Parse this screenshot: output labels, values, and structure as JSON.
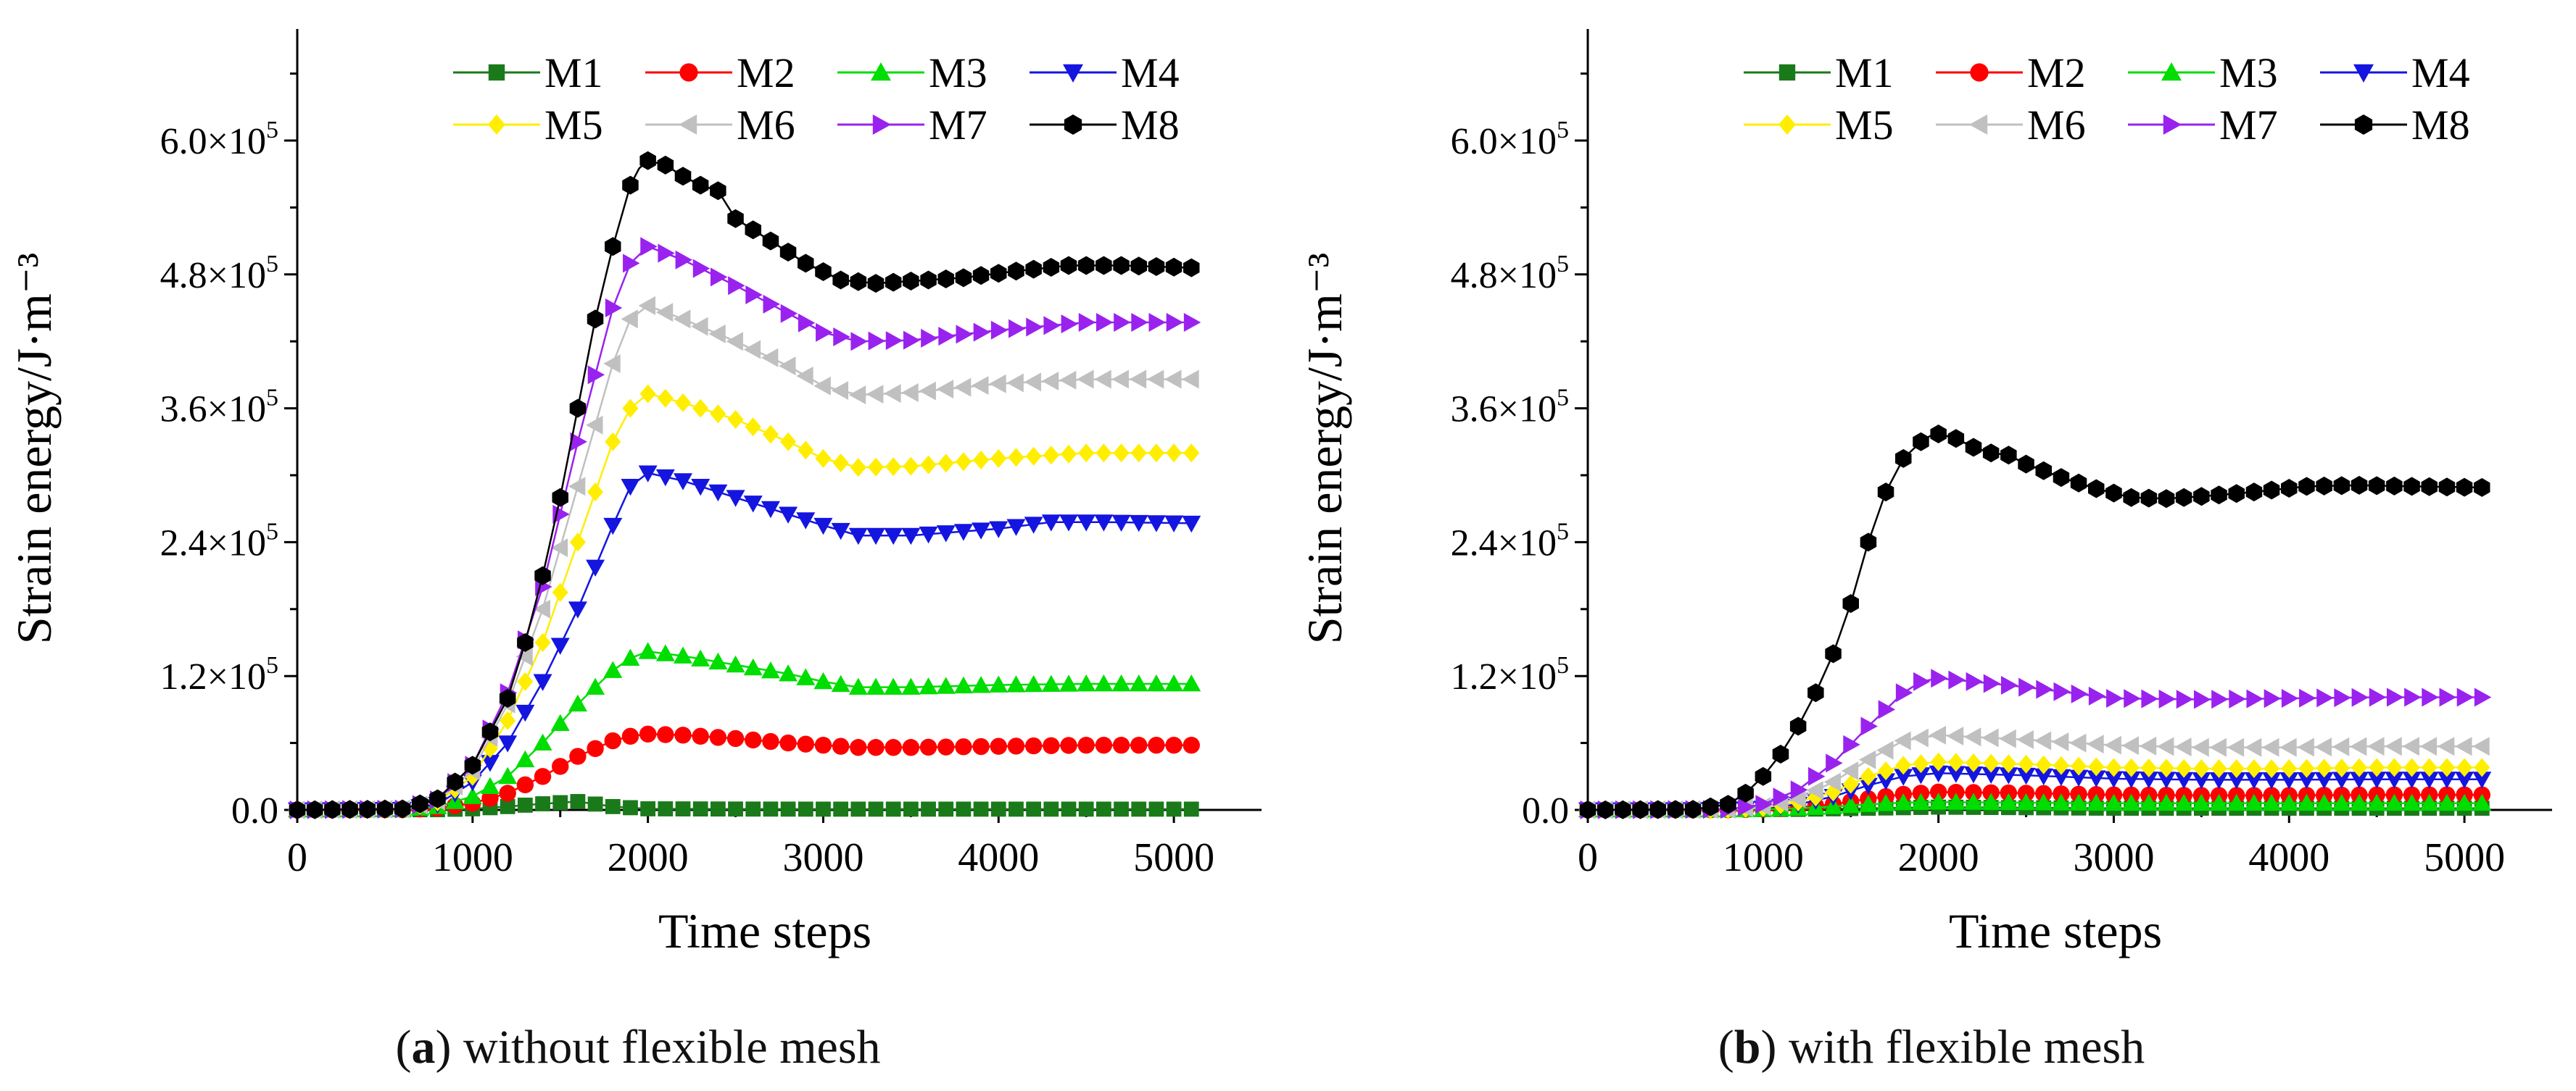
{
  "panels": [
    {
      "caption_letter": "a",
      "caption_paren_open": "(",
      "caption_paren_close": ")",
      "caption_text": " without flexible mesh"
    },
    {
      "caption_letter": "b",
      "caption_paren_open": "(",
      "caption_paren_close": ")",
      "caption_text": " with flexible mesh"
    }
  ],
  "chart_data": [
    {
      "type": "line",
      "title": "",
      "xlabel": "Time steps",
      "ylabel": "Strain energy/J·m⁻³",
      "xlim": [
        0,
        5500
      ],
      "ylim": [
        0,
        700000
      ],
      "x_ticks": [
        0,
        1000,
        2000,
        3000,
        4000,
        5000
      ],
      "x_tick_labels": [
        "0",
        "1000",
        "2000",
        "3000",
        "4000",
        "5000"
      ],
      "y_ticks": [
        0,
        120000,
        240000,
        360000,
        480000,
        600000
      ],
      "y_tick_labels": [
        {
          "mant": "0.0",
          "exp": ""
        },
        {
          "mant": "1.2×10",
          "exp": "5"
        },
        {
          "mant": "2.4×10",
          "exp": "5"
        },
        {
          "mant": "3.6×10",
          "exp": "5"
        },
        {
          "mant": "4.8×10",
          "exp": "5"
        },
        {
          "mant": "6.0×10",
          "exp": "5"
        }
      ],
      "grid": false,
      "legend_position": "top-center",
      "series": [
        {
          "name": "M1",
          "color": "#1a7a1a",
          "marker": "square",
          "x": [
            0,
            800,
            1000,
            1200,
            1400,
            1600,
            1800,
            2000,
            2500,
            3000,
            4000,
            5100
          ],
          "y": [
            0,
            200,
            1000,
            3000,
            5500,
            7500,
            3000,
            1000,
            800,
            700,
            700,
            700
          ]
        },
        {
          "name": "M2",
          "color": "#ff0000",
          "marker": "circle",
          "x": [
            0,
            600,
            800,
            1000,
            1200,
            1400,
            1600,
            1800,
            1900,
            2000,
            2200,
            2500,
            2800,
            3000,
            3200,
            3500,
            4000,
            4500,
            5100
          ],
          "y": [
            0,
            200,
            1500,
            6000,
            15000,
            30000,
            48000,
            62000,
            66000,
            68000,
            67000,
            64000,
            60000,
            58000,
            56000,
            56000,
            57000,
            58000,
            58000
          ]
        },
        {
          "name": "M3",
          "color": "#00dd00",
          "marker": "triangle-up",
          "x": [
            0,
            600,
            800,
            1000,
            1200,
            1400,
            1600,
            1800,
            1900,
            2000,
            2200,
            2500,
            2800,
            3000,
            3200,
            3500,
            4000,
            4500,
            5100
          ],
          "y": [
            0,
            300,
            3000,
            12000,
            30000,
            60000,
            95000,
            125000,
            136000,
            142000,
            138000,
            130000,
            122000,
            115000,
            110000,
            110000,
            112000,
            113000,
            113000
          ]
        },
        {
          "name": "M4",
          "color": "#1515e0",
          "marker": "triangle-down",
          "x": [
            0,
            600,
            800,
            1000,
            1200,
            1400,
            1600,
            1800,
            1900,
            2000,
            2200,
            2500,
            2800,
            3000,
            3200,
            3500,
            4000,
            4300,
            4600,
            5100
          ],
          "y": [
            0,
            500,
            5000,
            25000,
            60000,
            115000,
            180000,
            255000,
            290000,
            302000,
            295000,
            280000,
            265000,
            255000,
            246000,
            246000,
            252000,
            258000,
            258000,
            257000
          ]
        },
        {
          "name": "M5",
          "color": "#ffee00",
          "marker": "diamond",
          "x": [
            0,
            600,
            800,
            1000,
            1200,
            1400,
            1600,
            1800,
            1900,
            2000,
            2200,
            2500,
            2800,
            3000,
            3200,
            3500,
            4000,
            4500,
            5100
          ],
          "y": [
            0,
            600,
            7000,
            30000,
            80000,
            150000,
            240000,
            330000,
            360000,
            373000,
            365000,
            350000,
            330000,
            315000,
            307000,
            308000,
            315000,
            320000,
            320000
          ]
        },
        {
          "name": "M6",
          "color": "#c0c0c0",
          "marker": "triangle-left",
          "x": [
            0,
            600,
            800,
            1000,
            1200,
            1400,
            1600,
            1800,
            1900,
            2000,
            2200,
            2500,
            2800,
            3000,
            3200,
            3500,
            4000,
            4500,
            5100
          ],
          "y": [
            0,
            700,
            8000,
            35000,
            95000,
            180000,
            290000,
            400000,
            440000,
            452000,
            440000,
            420000,
            398000,
            380000,
            372000,
            374000,
            382000,
            386000,
            386000
          ]
        },
        {
          "name": "M7",
          "color": "#9a22ee",
          "marker": "triangle-right",
          "x": [
            0,
            600,
            800,
            1000,
            1200,
            1400,
            1600,
            1800,
            1900,
            2000,
            2200,
            2500,
            2800,
            3000,
            3200,
            3500,
            4000,
            4500,
            5100
          ],
          "y": [
            0,
            800,
            9000,
            40000,
            105000,
            200000,
            330000,
            450000,
            490000,
            505000,
            493000,
            470000,
            445000,
            428000,
            420000,
            421000,
            430000,
            437000,
            437000
          ]
        },
        {
          "name": "M8",
          "color": "#000000",
          "marker": "hexagon",
          "x": [
            0,
            600,
            800,
            1000,
            1200,
            1300,
            1400,
            1500,
            1600,
            1700,
            1800,
            1900,
            1950,
            2000,
            2100,
            2200,
            2300,
            2400,
            2500,
            2700,
            2900,
            3100,
            3300,
            3500,
            3800,
            4100,
            4400,
            4700,
            5100
          ],
          "y": [
            0,
            900,
            10000,
            40000,
            100000,
            150000,
            210000,
            280000,
            360000,
            440000,
            505000,
            560000,
            575000,
            582000,
            578000,
            568000,
            560000,
            555000,
            530000,
            510000,
            490000,
            475000,
            472000,
            474000,
            477000,
            483000,
            488000,
            488000,
            486000
          ]
        }
      ]
    },
    {
      "type": "line",
      "title": "",
      "xlabel": "Time steps",
      "ylabel": "Strain energy/J·m⁻³",
      "xlim": [
        0,
        5500
      ],
      "ylim": [
        0,
        700000
      ],
      "x_ticks": [
        0,
        1000,
        2000,
        3000,
        4000,
        5000
      ],
      "x_tick_labels": [
        "0",
        "1000",
        "2000",
        "3000",
        "4000",
        "5000"
      ],
      "y_ticks": [
        0,
        120000,
        240000,
        360000,
        480000,
        600000
      ],
      "y_tick_labels": [
        {
          "mant": "0.0",
          "exp": ""
        },
        {
          "mant": "1.2×10",
          "exp": "5"
        },
        {
          "mant": "2.4×10",
          "exp": "5"
        },
        {
          "mant": "3.6×10",
          "exp": "5"
        },
        {
          "mant": "4.8×10",
          "exp": "5"
        },
        {
          "mant": "6.0×10",
          "exp": "5"
        }
      ],
      "grid": false,
      "legend_position": "top-center",
      "series": [
        {
          "name": "M1",
          "color": "#1a7a1a",
          "marker": "square",
          "x": [
            0,
            800,
            1200,
            1600,
            2000,
            2500,
            3000,
            4000,
            5100
          ],
          "y": [
            0,
            100,
            500,
            1500,
            2500,
            2000,
            1500,
            1500,
            1500
          ]
        },
        {
          "name": "M2",
          "color": "#ff0000",
          "marker": "circle",
          "x": [
            0,
            800,
            1000,
            1200,
            1400,
            1600,
            1800,
            2000,
            2500,
            3000,
            3500,
            4000,
            4500,
            5100
          ],
          "y": [
            0,
            100,
            600,
            2000,
            5000,
            10000,
            14000,
            16000,
            15000,
            13500,
            13000,
            13000,
            13500,
            13500
          ]
        },
        {
          "name": "M3",
          "color": "#00dd00",
          "marker": "triangle-up",
          "x": [
            0,
            800,
            1000,
            1200,
            1400,
            1600,
            1800,
            2000,
            2500,
            3000,
            3500,
            4000,
            4500,
            5100
          ],
          "y": [
            0,
            100,
            500,
            1500,
            3000,
            5000,
            6500,
            7000,
            6500,
            6000,
            6000,
            6000,
            6000,
            6000
          ]
        },
        {
          "name": "M4",
          "color": "#1515e0",
          "marker": "triangle-down",
          "x": [
            0,
            800,
            1000,
            1200,
            1400,
            1600,
            1800,
            2000,
            2500,
            3000,
            3500,
            4000,
            4500,
            5100
          ],
          "y": [
            0,
            200,
            1500,
            5000,
            12000,
            22000,
            30000,
            33000,
            31000,
            28000,
            27000,
            27000,
            27500,
            27500
          ]
        },
        {
          "name": "M5",
          "color": "#ffee00",
          "marker": "diamond",
          "x": [
            0,
            800,
            1000,
            1200,
            1400,
            1600,
            1800,
            2000,
            2500,
            3000,
            3500,
            4000,
            4500,
            5100
          ],
          "y": [
            0,
            300,
            2000,
            7000,
            16000,
            30000,
            40000,
            43000,
            41000,
            38000,
            37000,
            37000,
            38000,
            38000
          ]
        },
        {
          "name": "M6",
          "color": "#c0c0c0",
          "marker": "triangle-left",
          "x": [
            0,
            800,
            1000,
            1200,
            1400,
            1600,
            1800,
            2000,
            2500,
            3000,
            3500,
            4000,
            4500,
            5100
          ],
          "y": [
            0,
            400,
            3000,
            10000,
            25000,
            45000,
            62000,
            67000,
            63000,
            58000,
            56000,
            56000,
            57000,
            57000
          ]
        },
        {
          "name": "M7",
          "color": "#9a22ee",
          "marker": "triangle-right",
          "x": [
            0,
            800,
            1000,
            1200,
            1400,
            1600,
            1800,
            1900,
            2000,
            2200,
            2500,
            2800,
            3000,
            3500,
            4000,
            4500,
            5100
          ],
          "y": [
            0,
            500,
            5000,
            18000,
            42000,
            75000,
            105000,
            115000,
            118000,
            115000,
            110000,
            104000,
            100000,
            99000,
            100000,
            101000,
            101000
          ]
        },
        {
          "name": "M8",
          "color": "#000000",
          "marker": "hexagon",
          "x": [
            0,
            600,
            800,
            900,
            1000,
            1100,
            1200,
            1300,
            1400,
            1500,
            1600,
            1700,
            1800,
            1900,
            1950,
            2000,
            2100,
            2200,
            2300,
            2400,
            2500,
            2700,
            2900,
            3100,
            3300,
            3500,
            3800,
            4100,
            4400,
            4700,
            5100
          ],
          "y": [
            0,
            500,
            5000,
            15000,
            30000,
            50000,
            75000,
            105000,
            140000,
            185000,
            240000,
            285000,
            315000,
            330000,
            335000,
            337000,
            333000,
            325000,
            320000,
            318000,
            310000,
            298000,
            288000,
            280000,
            279000,
            281000,
            285000,
            290000,
            291000,
            290000,
            289000
          ]
        }
      ]
    }
  ]
}
